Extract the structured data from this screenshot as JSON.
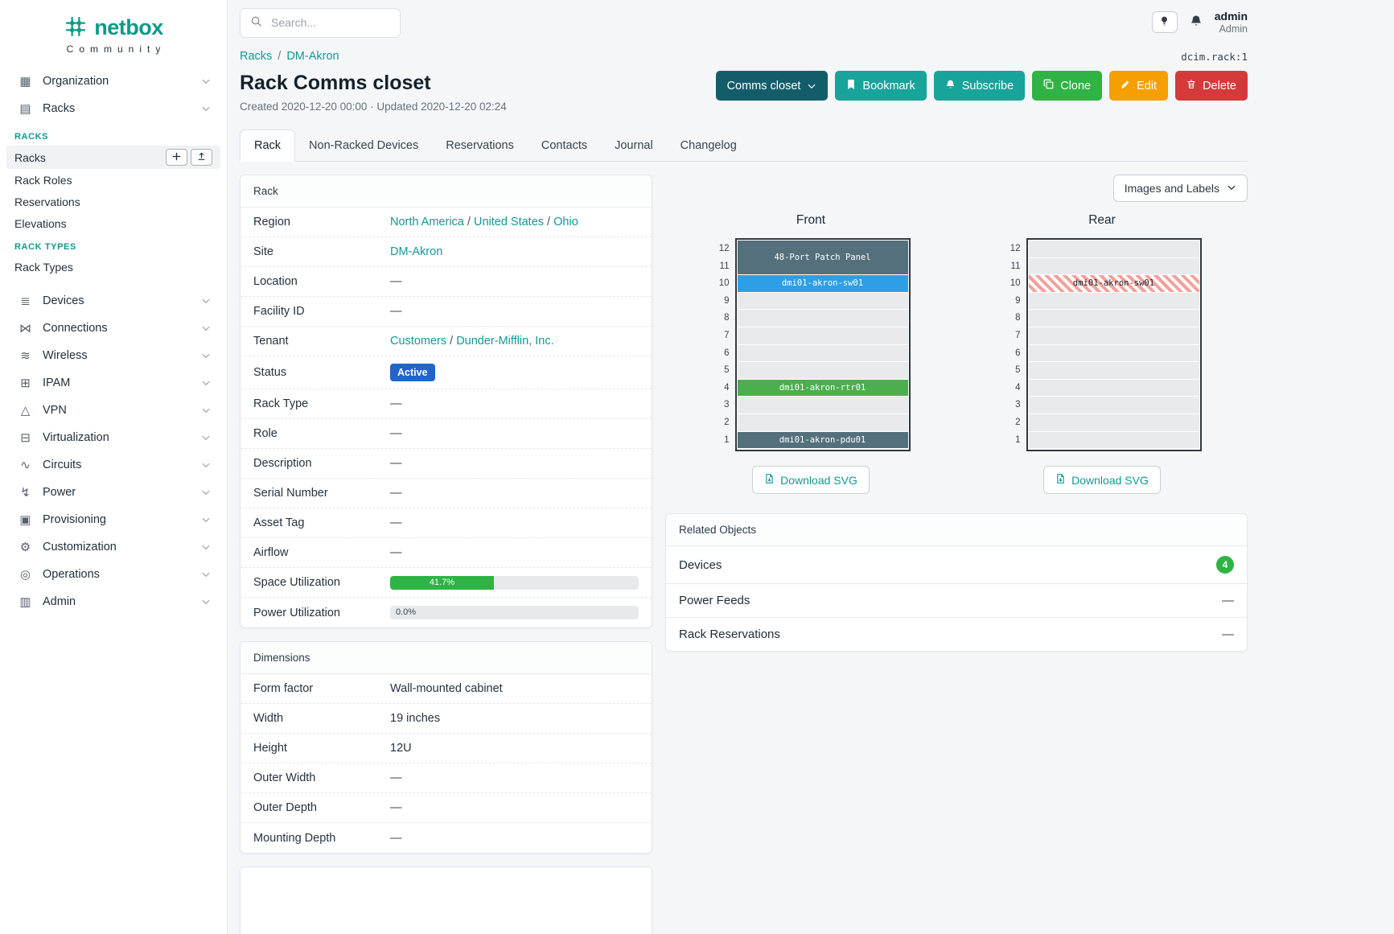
{
  "colors": {
    "brand_teal": "#0c9a8a",
    "link_teal": "#109a93",
    "button_teal": "#18a39b",
    "button_dark_teal": "#135d6b",
    "button_green": "#2fb344",
    "button_orange": "#f59f00",
    "button_red": "#d63939",
    "status_blue": "#2264c8",
    "progress_green": "#2fb344",
    "device_slate": "#54707c",
    "device_blue": "#2e9fe6",
    "device_green": "#4cae4f",
    "device_striped_red": "#f5a09a"
  },
  "brand": {
    "name": "netbox",
    "tagline": "Community"
  },
  "topbar": {
    "search_placeholder": "Search...",
    "user": {
      "name": "admin",
      "role": "Admin"
    }
  },
  "sidebar": {
    "groups": [
      {
        "label": "Organization",
        "icon": "building-icon",
        "glyph": "▦"
      },
      {
        "label": "Racks",
        "icon": "rack-icon",
        "glyph": "▤",
        "expanded": true,
        "sections": [
          {
            "heading": "RACKS",
            "items": [
              {
                "label": "Racks",
                "active": true,
                "actions": [
                  {
                    "icon": "plus-icon",
                    "name": "add"
                  },
                  {
                    "icon": "import-icon",
                    "name": "import"
                  }
                ]
              },
              {
                "label": "Rack Roles"
              },
              {
                "label": "Reservations"
              },
              {
                "label": "Elevations"
              }
            ]
          },
          {
            "heading": "RACK TYPES",
            "items": [
              {
                "label": "Rack Types"
              }
            ]
          }
        ]
      },
      {
        "label": "Devices",
        "icon": "devices-icon",
        "glyph": "≣"
      },
      {
        "label": "Connections",
        "icon": "connections-icon",
        "glyph": "⋈"
      },
      {
        "label": "Wireless",
        "icon": "wireless-icon",
        "glyph": "≋"
      },
      {
        "label": "IPAM",
        "icon": "ipam-icon",
        "glyph": "⊞"
      },
      {
        "label": "VPN",
        "icon": "vpn-icon",
        "glyph": "△"
      },
      {
        "label": "Virtualization",
        "icon": "virtualization-icon",
        "glyph": "⊟"
      },
      {
        "label": "Circuits",
        "icon": "circuits-icon",
        "glyph": "∿"
      },
      {
        "label": "Power",
        "icon": "power-icon",
        "glyph": "↯"
      },
      {
        "label": "Provisioning",
        "icon": "provisioning-icon",
        "glyph": "▣"
      },
      {
        "label": "Customization",
        "icon": "customization-icon",
        "glyph": "⚙"
      },
      {
        "label": "Operations",
        "icon": "operations-icon",
        "glyph": "◎"
      },
      {
        "label": "Admin",
        "icon": "admin-icon",
        "glyph": "▥"
      }
    ]
  },
  "header": {
    "breadcrumb": [
      {
        "label": "Racks"
      },
      {
        "label": "DM-Akron"
      }
    ],
    "object_id": "dcim.rack:1",
    "title": "Rack Comms closet",
    "meta": "Created 2020-12-20 00:00 · Updated 2020-12-20 02:24",
    "actions": [
      {
        "label": "Comms closet",
        "style": "grouping",
        "caret": true
      },
      {
        "label": "Bookmark",
        "style": "teal",
        "icon": "bookmark-icon"
      },
      {
        "label": "Subscribe",
        "style": "teal",
        "icon": "bell-icon"
      },
      {
        "label": "Clone",
        "style": "green",
        "icon": "copy-icon"
      },
      {
        "label": "Edit",
        "style": "orange",
        "icon": "pencil-icon"
      },
      {
        "label": "Delete",
        "style": "red",
        "icon": "trash-icon"
      }
    ]
  },
  "tabs": {
    "active": "Rack",
    "items": [
      "Rack",
      "Non-Racked Devices",
      "Reservations",
      "Contacts",
      "Journal",
      "Changelog"
    ]
  },
  "rack_card": {
    "title": "Rack",
    "rows": [
      {
        "label": "Region",
        "kind": "links",
        "links": [
          "North America",
          "United States",
          "Ohio"
        ]
      },
      {
        "label": "Site",
        "kind": "links",
        "links": [
          "DM-Akron"
        ]
      },
      {
        "label": "Location",
        "kind": "dash",
        "value": "—"
      },
      {
        "label": "Facility ID",
        "kind": "dash",
        "value": "—"
      },
      {
        "label": "Tenant",
        "kind": "links",
        "links": [
          "Customers",
          "Dunder-Mifflin, Inc."
        ]
      },
      {
        "label": "Status",
        "kind": "badge",
        "value": "Active"
      },
      {
        "label": "Rack Type",
        "kind": "dash",
        "value": "—"
      },
      {
        "label": "Role",
        "kind": "dash",
        "value": "—"
      },
      {
        "label": "Description",
        "kind": "dash",
        "value": "—"
      },
      {
        "label": "Serial Number",
        "kind": "dash",
        "value": "—"
      },
      {
        "label": "Asset Tag",
        "kind": "dash",
        "value": "—"
      },
      {
        "label": "Airflow",
        "kind": "dash",
        "value": "—"
      },
      {
        "label": "Space Utilization",
        "kind": "progress",
        "percent": 41.7,
        "text": "41.7%"
      },
      {
        "label": "Power Utilization",
        "kind": "progress",
        "percent": 0,
        "text": "0.0%"
      }
    ]
  },
  "dimensions_card": {
    "title": "Dimensions",
    "rows": [
      {
        "label": "Form factor",
        "kind": "text",
        "value": "Wall-mounted cabinet"
      },
      {
        "label": "Width",
        "kind": "text",
        "value": "19 inches"
      },
      {
        "label": "Height",
        "kind": "text",
        "value": "12U"
      },
      {
        "label": "Outer Width",
        "kind": "dash",
        "value": "—"
      },
      {
        "label": "Outer Depth",
        "kind": "dash",
        "value": "—"
      },
      {
        "label": "Mounting Depth",
        "kind": "dash",
        "value": "—"
      }
    ]
  },
  "elevation": {
    "view_select": "Images and Labels",
    "download_label": "Download SVG",
    "unit_count": 12,
    "front": {
      "title": "Front",
      "devices": [
        {
          "name": "48-Port Patch Panel",
          "top_unit": 12,
          "u_height": 2,
          "style": "slate"
        },
        {
          "name": "dmi01-akron-sw01",
          "top_unit": 10,
          "u_height": 1,
          "style": "blue"
        },
        {
          "name": "dmi01-akron-rtr01",
          "top_unit": 4,
          "u_height": 1,
          "style": "green"
        },
        {
          "name": "dmi01-akron-pdu01",
          "top_unit": 1,
          "u_height": 1,
          "style": "slate"
        }
      ]
    },
    "rear": {
      "title": "Rear",
      "devices": [
        {
          "name": "dmi01-akron-sw01",
          "top_unit": 10,
          "u_height": 1,
          "style": "striped"
        }
      ]
    }
  },
  "related": {
    "title": "Related Objects",
    "rows": [
      {
        "label": "Devices",
        "count": "4"
      },
      {
        "label": "Power Feeds",
        "value": "—"
      },
      {
        "label": "Rack Reservations",
        "value": "—"
      }
    ]
  }
}
